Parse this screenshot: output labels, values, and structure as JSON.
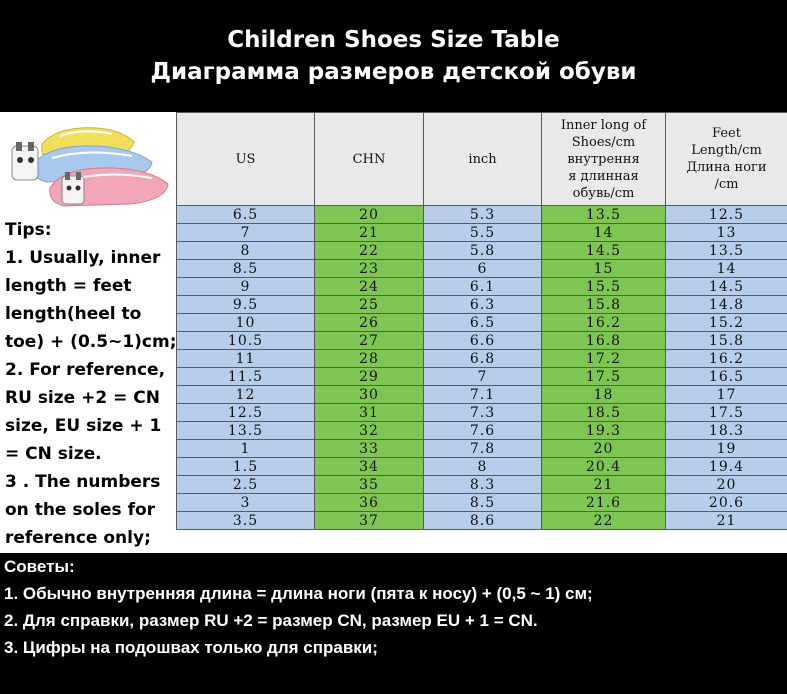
{
  "title": {
    "en": "Children Shoes Size Table",
    "ru": "Диаграмма размеров детской обуви"
  },
  "table": {
    "headers": {
      "us": "US",
      "chn": "CHN",
      "inch": "inch",
      "inner": [
        "Inner long of",
        "Shoes/cm",
        "внутрення",
        "я длинная",
        "обувь/cm"
      ],
      "feet": [
        "Feet",
        "Length/cm",
        "Длина ноги",
        "/cm"
      ]
    },
    "rows": [
      [
        "6.5",
        "20",
        "5.3",
        "13.5",
        "12.5"
      ],
      [
        "7",
        "21",
        "5.5",
        "14",
        "13"
      ],
      [
        "8",
        "22",
        "5.8",
        "14.5",
        "13.5"
      ],
      [
        "8.5",
        "23",
        "6",
        "15",
        "14"
      ],
      [
        "9",
        "24",
        "6.1",
        "15.5",
        "14.5"
      ],
      [
        "9.5",
        "25",
        "6.3",
        "15.8",
        "14.8"
      ],
      [
        "10",
        "26",
        "6.5",
        "16.2",
        "15.2"
      ],
      [
        "10.5",
        "27",
        "6.6",
        "16.8",
        "15.8"
      ],
      [
        "11",
        "28",
        "6.8",
        "17.2",
        "16.2"
      ],
      [
        "11.5",
        "29",
        "7",
        "17.5",
        "16.5"
      ],
      [
        "12",
        "30",
        "7.1",
        "18",
        "17"
      ],
      [
        "12.5",
        "31",
        "7.3",
        "18.5",
        "17.5"
      ],
      [
        "13.5",
        "32",
        "7.6",
        "19.3",
        "18.3"
      ],
      [
        "1",
        "33",
        "7.8",
        "20",
        "19"
      ],
      [
        "1.5",
        "34",
        "8",
        "20.4",
        "19.4"
      ],
      [
        "2.5",
        "35",
        "8.3",
        "21",
        "20"
      ],
      [
        "3",
        "36",
        "8.5",
        "21.6",
        "20.6"
      ],
      [
        "3.5",
        "37",
        "8.6",
        "22",
        "21"
      ]
    ]
  },
  "tips": [
    "Tips:",
    "1. Usually, inner",
    "length = feet",
    "length(heel to",
    "toe) + (0.5~1)cm;",
    "2. For reference,",
    "RU size +2 = CN",
    "size, EU size + 1",
    "= CN size.",
    "3 . The numbers",
    "on the soles for",
    "reference only;"
  ],
  "tips_ru": [
    "Советы:",
    "1. Обычно внутренняя длина = длина ноги (пята к носу) + (0,5 ~ 1) см;",
    "2. Для справки, размер RU +2 = размер CN, размер EU + 1 = CN.",
    "3. Цифры на подошвах только для справки;"
  ],
  "colors": {
    "blue_cell": "#b7cdea",
    "green_cell": "#7ec654",
    "header_bg": "#e9e9e9",
    "banner_bg": "#000000",
    "shoe_yellow": "#f2df58",
    "shoe_blue": "#a8c8ee",
    "shoe_pink": "#f3a6b8"
  },
  "image": {
    "icon": "kids-shoes-photo"
  }
}
